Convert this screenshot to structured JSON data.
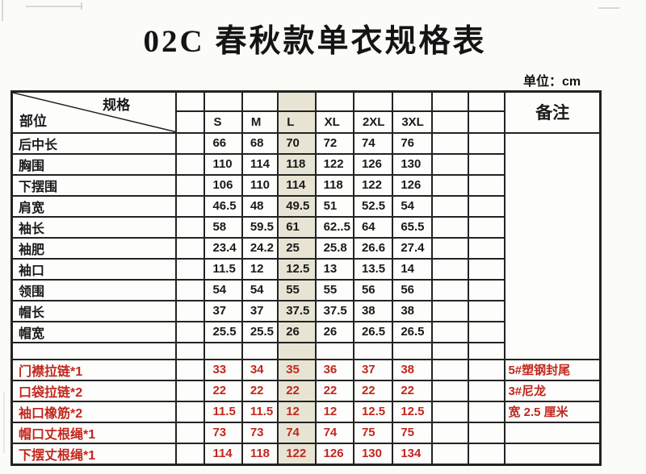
{
  "page": {
    "title": "02C 春秋款单衣规格表",
    "unit_label": "单位：cm"
  },
  "colors": {
    "highlight_column": "#e7e4d4",
    "red_text": "#c1271d",
    "border": "#232323"
  },
  "table": {
    "corner": {
      "top_right": "规格",
      "bottom_left": "部位"
    },
    "remark_header": "备注",
    "size_headers": [
      "S",
      "M",
      "L",
      "XL",
      "2XL",
      "3XL"
    ],
    "highlighted_size": "L",
    "body_rows": [
      {
        "type": "data",
        "label": "后中长",
        "values": [
          "66",
          "68",
          "70",
          "72",
          "74",
          "76"
        ]
      },
      {
        "type": "data",
        "label": "胸围",
        "values": [
          "110",
          "114",
          "118",
          "122",
          "126",
          "130"
        ]
      },
      {
        "type": "data",
        "label": "下摆围",
        "values": [
          "106",
          "110",
          "114",
          "118",
          "122",
          "126"
        ]
      },
      {
        "type": "data",
        "label": "肩宽",
        "values": [
          "46.5",
          "48",
          "49.5",
          "51",
          "52.5",
          "54"
        ]
      },
      {
        "type": "data",
        "label": "袖长",
        "values": [
          "58",
          "59.5",
          "61",
          "62..5",
          "64",
          "65.5"
        ]
      },
      {
        "type": "data",
        "label": "袖肥",
        "values": [
          "23.4",
          "24.2",
          "25",
          "25.8",
          "26.6",
          "27.4"
        ]
      },
      {
        "type": "data",
        "label": "袖口",
        "values": [
          "11.5",
          "12",
          "12.5",
          "13",
          "13.5",
          "14"
        ]
      },
      {
        "type": "data",
        "label": "领围",
        "values": [
          "54",
          "54",
          "55",
          "55",
          "56",
          "56"
        ]
      },
      {
        "type": "data",
        "label": "帽长",
        "values": [
          "37",
          "37",
          "37.5",
          "37.5",
          "38",
          "38"
        ]
      },
      {
        "type": "data",
        "label": "帽宽",
        "values": [
          "25.5",
          "25.5",
          "26",
          "26",
          "26.5",
          "26.5"
        ]
      },
      {
        "type": "spacer",
        "label": "",
        "values": [
          "",
          "",
          "",
          "",
          "",
          ""
        ]
      },
      {
        "type": "red",
        "label": "门襟拉链*1",
        "values": [
          "33",
          "34",
          "35",
          "36",
          "37",
          "38"
        ],
        "remark": "5#塑钢封尾"
      },
      {
        "type": "red",
        "label": "口袋拉链*2",
        "values": [
          "22",
          "22",
          "22",
          "22",
          "22",
          "22"
        ],
        "remark": "3#尼龙"
      },
      {
        "type": "red",
        "label": "袖口橡筋*2",
        "values": [
          "11.5",
          "11.5",
          "12",
          "12",
          "12.5",
          "12.5"
        ],
        "remark": "宽 2.5 厘米"
      },
      {
        "type": "red",
        "label": "帽口丈根绳*1",
        "values": [
          "73",
          "73",
          "74",
          "74",
          "75",
          "75"
        ],
        "remark": ""
      },
      {
        "type": "red",
        "label": "下摆丈根绳*1",
        "values": [
          "114",
          "118",
          "122",
          "126",
          "130",
          "134"
        ],
        "remark": ""
      }
    ]
  }
}
